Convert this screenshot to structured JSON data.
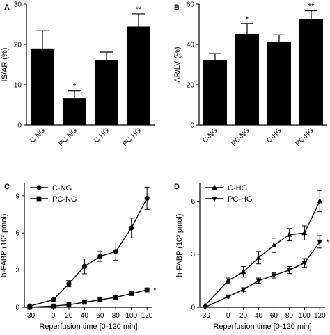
{
  "figure": {
    "panel_letters": [
      "A",
      "B",
      "C",
      "D"
    ]
  },
  "chart_data": [
    {
      "panel": "A",
      "type": "bar",
      "categories": [
        "C-NG",
        "PC-NG",
        "C-HG",
        "PC-HG"
      ],
      "values": [
        19.0,
        6.7,
        16.1,
        24.4
      ],
      "errors": [
        4.4,
        1.8,
        2.0,
        3.2
      ],
      "annotations": [
        "",
        "*",
        "",
        "**"
      ],
      "ylabel": "IS/AR (%)",
      "ylim": [
        0,
        30
      ],
      "yticks": [
        0,
        10,
        20,
        30
      ],
      "bar_color": "#000000"
    },
    {
      "panel": "B",
      "type": "bar",
      "categories": [
        "C-NG",
        "PC-NG",
        "C-HG",
        "PC-HG"
      ],
      "values": [
        32.2,
        45.2,
        41.4,
        52.5
      ],
      "errors": [
        3.3,
        5.2,
        3.3,
        4.2
      ],
      "annotations": [
        "",
        "*",
        "",
        "**"
      ],
      "ylabel": "AR/LV (%)",
      "ylim": [
        0,
        60
      ],
      "yticks": [
        0,
        20,
        40,
        60
      ],
      "bar_color": "#000000"
    },
    {
      "panel": "C",
      "type": "line",
      "x": [
        -30,
        0,
        20,
        40,
        60,
        80,
        100,
        120
      ],
      "xticks": [
        "-30",
        "0",
        "20",
        "40",
        "60",
        "80",
        "100",
        "120"
      ],
      "xlabel": "Reperfusion time [0-120 min]",
      "ylabel": "h-FABP (10³ pmol)",
      "ylim": [
        0,
        10
      ],
      "yticks": [
        0,
        3,
        6,
        9
      ],
      "legend_position": "top-left",
      "series": [
        {
          "name": "C-NG",
          "marker": "circle",
          "values": [
            0.1,
            0.6,
            1.9,
            3.3,
            4.1,
            4.5,
            6.4,
            8.8
          ],
          "errors": [
            0.05,
            0.1,
            0.25,
            0.6,
            0.4,
            0.7,
            0.8,
            0.9
          ]
        },
        {
          "name": "PC-NG",
          "marker": "square",
          "values": [
            0.0,
            0.1,
            0.2,
            0.4,
            0.6,
            0.8,
            1.1,
            1.4
          ],
          "errors": [
            0.02,
            0.03,
            0.04,
            0.05,
            0.05,
            0.06,
            0.08,
            0.1
          ]
        }
      ],
      "end_annotation": "*"
    },
    {
      "panel": "D",
      "type": "line",
      "x": [
        -30,
        0,
        20,
        40,
        60,
        80,
        100,
        120
      ],
      "xticks": [
        "-30",
        "0",
        "20",
        "40",
        "60",
        "80",
        "100",
        "120"
      ],
      "xlabel": "Reperfusion time [0-120 min]",
      "ylabel": "h-FABP (10³ pmol)",
      "ylim": [
        0,
        7
      ],
      "yticks": [
        0,
        3,
        6
      ],
      "legend_position": "top-left",
      "series": [
        {
          "name": "C-HG",
          "marker": "triangle-up",
          "values": [
            0.1,
            1.5,
            2.0,
            2.8,
            3.5,
            4.1,
            4.2,
            6.0
          ],
          "errors": [
            0.05,
            0.15,
            0.3,
            0.35,
            0.4,
            0.35,
            0.4,
            0.6
          ]
        },
        {
          "name": "PC-HG",
          "marker": "triangle-down",
          "values": [
            0.0,
            0.6,
            1.0,
            1.5,
            1.8,
            2.1,
            2.5,
            3.7
          ],
          "errors": [
            0.03,
            0.08,
            0.1,
            0.15,
            0.15,
            0.2,
            0.25,
            0.35
          ]
        }
      ],
      "end_annotation": "*"
    }
  ]
}
